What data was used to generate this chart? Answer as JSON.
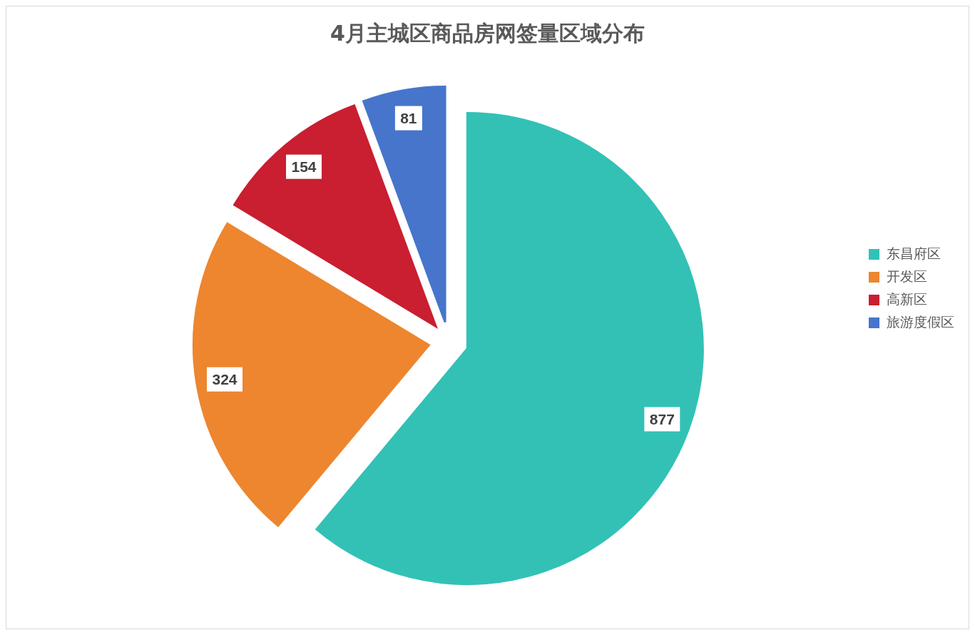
{
  "chart_data": {
    "type": "pie",
    "title": "4月主城区商品房网签量区域分布",
    "categories": [
      "东昌府区",
      "开发区",
      "高新区",
      "旅游度假区"
    ],
    "values": [
      877,
      324,
      154,
      81
    ],
    "colors": [
      "#33c1b6",
      "#ed862f",
      "#c91f31",
      "#4775cc"
    ],
    "data_labels": true,
    "legend": "right"
  }
}
